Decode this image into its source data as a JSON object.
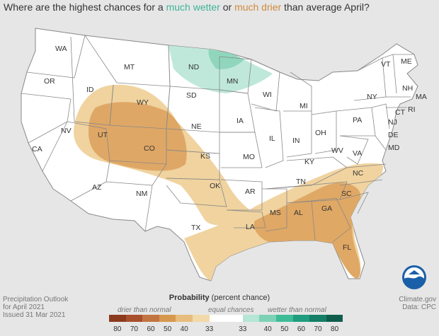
{
  "title": {
    "prefix": "Where are the highest chances for a ",
    "wetter": "much wetter",
    "middle": " or ",
    "drier": "much drier",
    "suffix": " than average April?"
  },
  "states": [
    "WA",
    "OR",
    "CA",
    "ID",
    "NV",
    "MT",
    "WY",
    "UT",
    "AZ",
    "CO",
    "NM",
    "ND",
    "SD",
    "NE",
    "KS",
    "OK",
    "TX",
    "MN",
    "IA",
    "MO",
    "AR",
    "LA",
    "WI",
    "IL",
    "MS",
    "MI",
    "IN",
    "KY",
    "TN",
    "AL",
    "OH",
    "GA",
    "FL",
    "WV",
    "VA",
    "NC",
    "SC",
    "PA",
    "NY",
    "VT",
    "ME",
    "NH",
    "MA",
    "CT",
    "RI",
    "NJ",
    "DE",
    "MD"
  ],
  "legend": {
    "title_bold": "Probability",
    "title_rest": " (percent chance)",
    "drier_label": "drier than normal",
    "equal_label": "equal chances",
    "wetter_label": "wetter than normal",
    "dry_ticks": [
      "80",
      "70",
      "60",
      "50",
      "40",
      "33"
    ],
    "wet_ticks": [
      "33",
      "40",
      "50",
      "60",
      "70",
      "80"
    ],
    "colors": [
      "#8b3a1e",
      "#a84f2c",
      "#c27541",
      "#d6984f",
      "#e7bc7c",
      "#f2d9a9",
      "#ffffff",
      "#ffffff",
      "#b5e6d6",
      "#7dd1b5",
      "#3ebc98",
      "#1f9d7e",
      "#157e66",
      "#0f5e4c"
    ]
  },
  "footer": {
    "left1": "Precipitation Outlook",
    "left2": "for April 2021",
    "left3": "Issued 31 Mar 2021",
    "right1": "Climate.gov",
    "right2": "Data: CPC"
  },
  "logo_text": "NOAA",
  "map_colors": {
    "dry_light": "#f0d39f",
    "dry_mid": "#e0a865",
    "dry_dark": "#d89858",
    "wet_light": "#bfe8da",
    "wet_mid": "#8fd6bd",
    "land": "#ffffff"
  }
}
